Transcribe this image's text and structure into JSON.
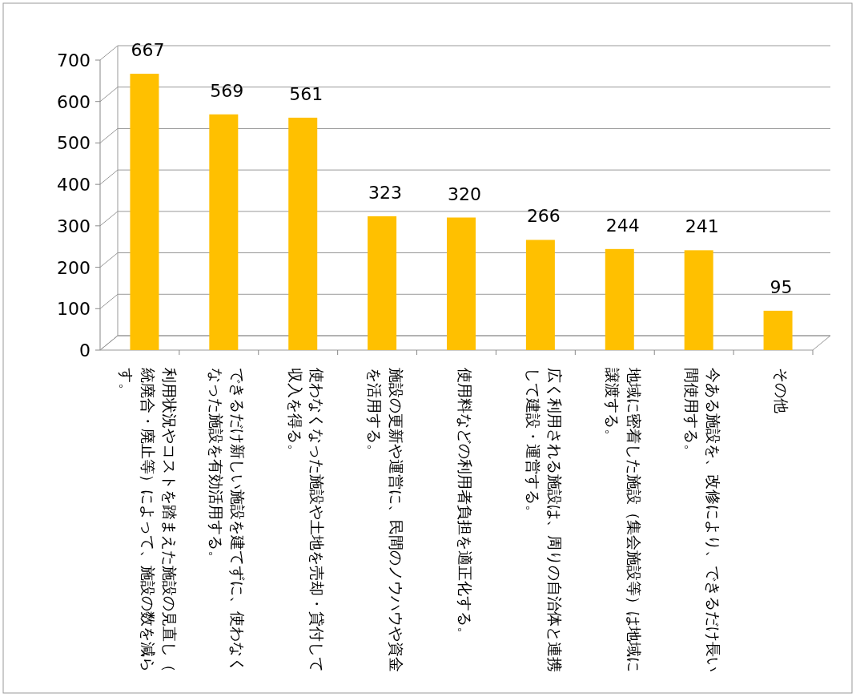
{
  "chart_data": {
    "type": "bar",
    "categories": [
      "利用状況やコストを踏まえた施設の見直し（統廃合・廃止等）によって、施設の数を減らす。",
      "できるだけ新しい施設を建てずに、使わなくなった施設を有効活用する。",
      "使わなくなった施設や土地を売却・貸付して収入を得る。",
      "施設の更新や運営に、民間のノウハウや資金を活用する。",
      "使用料などの利用者負担を適正化する。",
      "広く利用される施設は、周りの自治体と連携して建設・運営する。",
      "地域に密着した施設（集会施設等）は地域に譲渡する。",
      "今ある施設を、改修により、できるだけ長い間使用する。",
      "その他"
    ],
    "values": [
      667,
      569,
      561,
      323,
      320,
      266,
      244,
      241,
      95
    ],
    "color": "#ffc000",
    "ylim": [
      0,
      700
    ],
    "yticks": [
      0,
      100,
      200,
      300,
      400,
      500,
      600,
      700
    ],
    "grid": "y",
    "data_labels": true
  }
}
